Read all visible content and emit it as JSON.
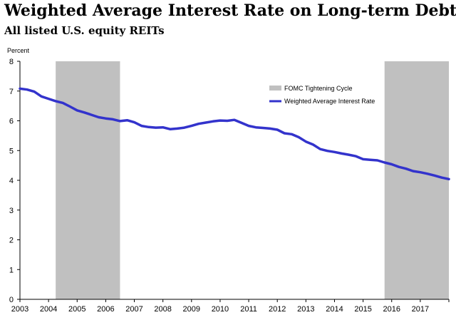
{
  "title": "Weighted Average Interest Rate on Long-term Debt",
  "subtitle": "All listed U.S. equity REITs",
  "chart_data": {
    "type": "line",
    "title": "Weighted Average Interest Rate on Long-term Debt",
    "subtitle": "All listed U.S. equity REITs",
    "ylabel": "Percent",
    "xlabel": "",
    "ylim": [
      0,
      8
    ],
    "yticks": [
      0,
      1,
      2,
      3,
      4,
      5,
      6,
      7,
      8
    ],
    "xlim": [
      2003,
      2018
    ],
    "xticks": [
      2003,
      2004,
      2005,
      2006,
      2007,
      2008,
      2009,
      2010,
      2011,
      2012,
      2013,
      2014,
      2015,
      2016,
      2017
    ],
    "grid": false,
    "legend_position": "top-right",
    "shaded_regions": {
      "name": "FOMC Tightening Cycle",
      "color": "#c0c0c0",
      "ranges": [
        [
          2004.25,
          2006.5
        ],
        [
          2015.75,
          2018.0
        ]
      ]
    },
    "series": [
      {
        "name": "Weighted Average Interest Rate",
        "color": "#3333cc",
        "points": [
          [
            2003.0,
            7.08
          ],
          [
            2003.25,
            7.05
          ],
          [
            2003.5,
            6.98
          ],
          [
            2003.75,
            6.82
          ],
          [
            2004.0,
            6.74
          ],
          [
            2004.25,
            6.66
          ],
          [
            2004.5,
            6.6
          ],
          [
            2004.75,
            6.48
          ],
          [
            2005.0,
            6.35
          ],
          [
            2005.25,
            6.28
          ],
          [
            2005.5,
            6.2
          ],
          [
            2005.75,
            6.12
          ],
          [
            2006.0,
            6.08
          ],
          [
            2006.25,
            6.05
          ],
          [
            2006.5,
            5.99
          ],
          [
            2006.75,
            6.02
          ],
          [
            2007.0,
            5.95
          ],
          [
            2007.25,
            5.83
          ],
          [
            2007.5,
            5.79
          ],
          [
            2007.75,
            5.77
          ],
          [
            2008.0,
            5.78
          ],
          [
            2008.25,
            5.72
          ],
          [
            2008.5,
            5.74
          ],
          [
            2008.75,
            5.77
          ],
          [
            2009.0,
            5.83
          ],
          [
            2009.25,
            5.9
          ],
          [
            2009.5,
            5.94
          ],
          [
            2009.75,
            5.98
          ],
          [
            2010.0,
            6.01
          ],
          [
            2010.25,
            6.0
          ],
          [
            2010.5,
            6.03
          ],
          [
            2010.75,
            5.93
          ],
          [
            2011.0,
            5.83
          ],
          [
            2011.25,
            5.78
          ],
          [
            2011.5,
            5.76
          ],
          [
            2011.75,
            5.74
          ],
          [
            2012.0,
            5.7
          ],
          [
            2012.25,
            5.58
          ],
          [
            2012.5,
            5.55
          ],
          [
            2012.75,
            5.45
          ],
          [
            2013.0,
            5.3
          ],
          [
            2013.25,
            5.2
          ],
          [
            2013.5,
            5.05
          ],
          [
            2013.75,
            4.99
          ],
          [
            2014.0,
            4.95
          ],
          [
            2014.25,
            4.9
          ],
          [
            2014.5,
            4.86
          ],
          [
            2014.75,
            4.81
          ],
          [
            2015.0,
            4.71
          ],
          [
            2015.25,
            4.69
          ],
          [
            2015.5,
            4.67
          ],
          [
            2015.75,
            4.6
          ],
          [
            2016.0,
            4.54
          ],
          [
            2016.25,
            4.45
          ],
          [
            2016.5,
            4.39
          ],
          [
            2016.75,
            4.31
          ],
          [
            2017.0,
            4.27
          ],
          [
            2017.25,
            4.22
          ],
          [
            2017.5,
            4.16
          ],
          [
            2017.75,
            4.09
          ],
          [
            2018.0,
            4.04
          ]
        ]
      }
    ]
  }
}
